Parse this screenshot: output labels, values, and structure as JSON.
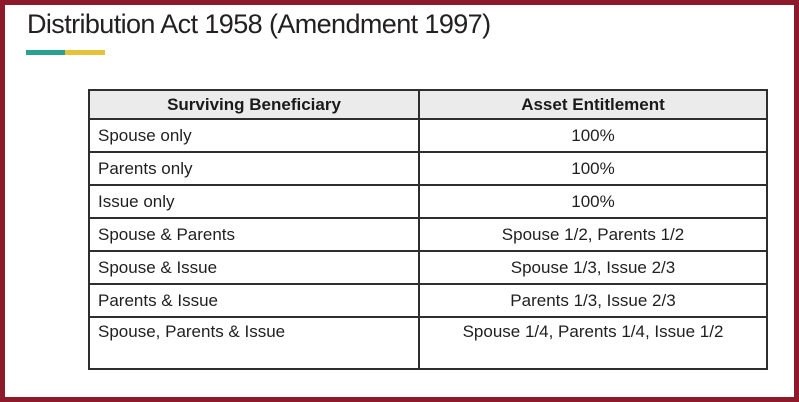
{
  "slide": {
    "border_color": "#8c1a2b",
    "background_color": "#ffffff"
  },
  "title": {
    "text": "Distribution Act 1958 (Amendment 1997)",
    "accent_colors": {
      "teal": "#2aa08e",
      "yellow": "#e6c23a"
    }
  },
  "table": {
    "header_background": "#ebebeb",
    "grid_color": "#2e2e2e",
    "headers": [
      "Surviving Beneficiary",
      "Asset Entitlement"
    ],
    "rows": [
      [
        "Spouse only",
        "100%"
      ],
      [
        "Parents only",
        "100%"
      ],
      [
        "Issue only",
        "100%"
      ],
      [
        "Spouse & Parents",
        "Spouse 1/2, Parents 1/2"
      ],
      [
        "Spouse & Issue",
        "Spouse 1/3, Issue 2/3"
      ],
      [
        "Parents & Issue",
        "Parents 1/3, Issue 2/3"
      ],
      [
        "Spouse, Parents & Issue",
        "Spouse 1/4, Parents 1/4, Issue 1/2"
      ]
    ]
  }
}
